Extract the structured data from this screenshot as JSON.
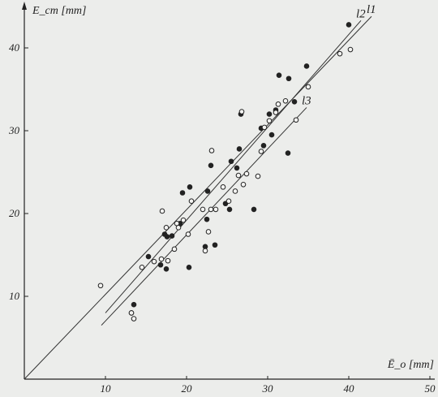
{
  "chart_data": {
    "type": "scatter",
    "xlabel": "Ē_o [mm]",
    "ylabel": "E_ст [mm]",
    "xlim": [
      0,
      50
    ],
    "ylim": [
      0,
      45
    ],
    "x_ticks": [
      "10",
      "20",
      "30",
      "40",
      "50"
    ],
    "y_ticks": [
      "10",
      "20",
      "30",
      "40"
    ],
    "grid": false,
    "series": [
      {
        "marker": "filled",
        "points": [
          [
            13.2,
            8.0
          ],
          [
            13.5,
            9.0
          ],
          [
            15.3,
            14.8
          ],
          [
            16.8,
            13.8
          ],
          [
            17.3,
            17.5
          ],
          [
            17.5,
            13.3
          ],
          [
            17.6,
            17.2
          ],
          [
            18.2,
            17.3
          ],
          [
            19.2,
            18.8
          ],
          [
            19.5,
            22.5
          ],
          [
            20.3,
            13.5
          ],
          [
            20.4,
            23.2
          ],
          [
            22.3,
            16.0
          ],
          [
            22.5,
            19.3
          ],
          [
            22.6,
            22.7
          ],
          [
            23.0,
            25.8
          ],
          [
            23.5,
            16.2
          ],
          [
            24.8,
            21.2
          ],
          [
            25.3,
            20.5
          ],
          [
            25.5,
            26.3
          ],
          [
            26.2,
            25.5
          ],
          [
            26.5,
            27.8
          ],
          [
            26.7,
            32.0
          ],
          [
            28.3,
            20.5
          ],
          [
            29.2,
            30.3
          ],
          [
            29.5,
            28.2
          ],
          [
            30.2,
            32.0
          ],
          [
            30.5,
            29.5
          ],
          [
            31.0,
            32.5
          ],
          [
            31.4,
            36.7
          ],
          [
            32.5,
            27.3
          ],
          [
            32.6,
            36.3
          ],
          [
            33.3,
            33.5
          ],
          [
            34.8,
            37.8
          ],
          [
            40.0,
            42.8
          ]
        ]
      },
      {
        "marker": "open",
        "points": [
          [
            9.4,
            11.3
          ],
          [
            13.2,
            8.0
          ],
          [
            13.5,
            7.3
          ],
          [
            14.5,
            13.5
          ],
          [
            16.0,
            14.2
          ],
          [
            16.9,
            14.5
          ],
          [
            17.0,
            20.3
          ],
          [
            17.5,
            18.3
          ],
          [
            17.7,
            14.3
          ],
          [
            18.5,
            15.7
          ],
          [
            18.8,
            18.8
          ],
          [
            19.0,
            18.3
          ],
          [
            19.6,
            19.2
          ],
          [
            20.2,
            17.5
          ],
          [
            20.6,
            21.5
          ],
          [
            22.0,
            20.5
          ],
          [
            22.3,
            15.5
          ],
          [
            22.7,
            17.8
          ],
          [
            23.0,
            20.5
          ],
          [
            23.1,
            27.6
          ],
          [
            23.6,
            20.5
          ],
          [
            24.5,
            23.2
          ],
          [
            25.2,
            21.5
          ],
          [
            26.0,
            22.7
          ],
          [
            26.4,
            24.6
          ],
          [
            26.8,
            32.3
          ],
          [
            27.0,
            23.5
          ],
          [
            27.4,
            24.8
          ],
          [
            28.8,
            24.5
          ],
          [
            29.2,
            27.5
          ],
          [
            29.6,
            30.4
          ],
          [
            30.2,
            31.2
          ],
          [
            31.0,
            32.2
          ],
          [
            31.3,
            33.2
          ],
          [
            32.2,
            33.6
          ],
          [
            33.5,
            31.3
          ],
          [
            35.0,
            35.3
          ],
          [
            38.9,
            39.3
          ],
          [
            40.2,
            39.8
          ]
        ]
      }
    ],
    "fit_lines": [
      {
        "label": "l1",
        "from": [
          0,
          0
        ],
        "to": [
          42.8,
          43.8
        ]
      },
      {
        "label": "l2",
        "from": [
          10,
          8.0
        ],
        "to": [
          41.5,
          43.3
        ]
      },
      {
        "label": "l3",
        "from": [
          9.5,
          6.5
        ],
        "to": [
          34.8,
          32.8
        ]
      }
    ]
  }
}
